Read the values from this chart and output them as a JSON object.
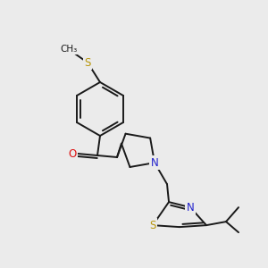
{
  "background_color": "#ebebeb",
  "bond_color": "#1a1a1a",
  "atom_colors": {
    "S": "#b8960c",
    "N": "#2020cc",
    "O": "#dd1111",
    "C": "#1a1a1a"
  },
  "figsize": [
    3.0,
    3.0
  ],
  "dpi": 100
}
